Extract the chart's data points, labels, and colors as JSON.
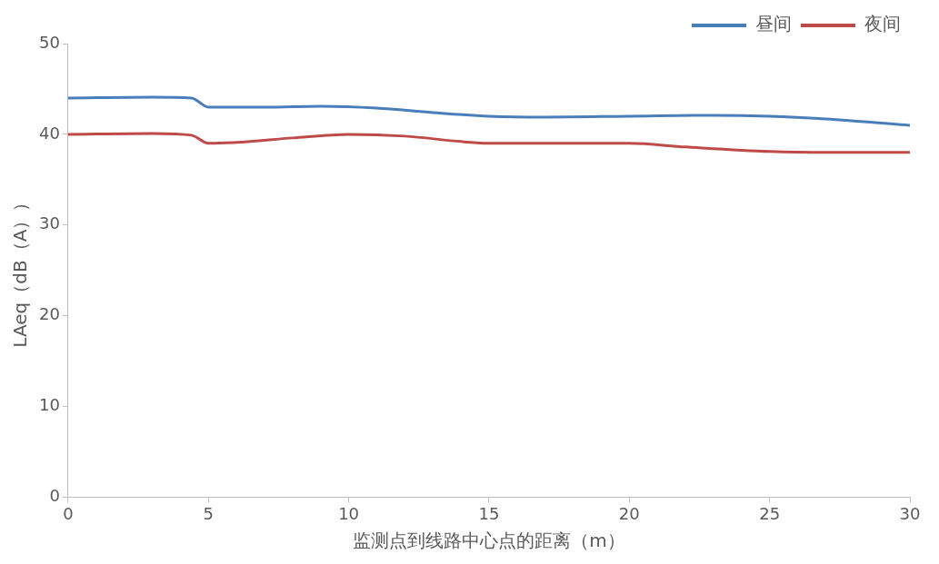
{
  "chart_data": {
    "type": "line",
    "xlabel": "监测点到线路中心点的距离（m）",
    "ylabel": "LAeq（dB（A））",
    "xlim": [
      0,
      30
    ],
    "xticks": [
      0,
      5,
      10,
      15,
      20,
      25,
      30
    ],
    "ylim": [
      0,
      50
    ],
    "yticks": [
      0,
      10,
      20,
      30,
      40,
      50
    ],
    "grid": false,
    "legend": "top right",
    "marker": "none",
    "series": [
      {
        "name": "昼间",
        "color": "#4a7ebb",
        "x": [
          0,
          3,
          4.4,
          5,
          7,
          9,
          11,
          13,
          15,
          17,
          20,
          23,
          25,
          27,
          30
        ],
        "values": [
          44,
          44.1,
          44,
          43,
          43,
          43.1,
          42.9,
          42.4,
          42,
          41.9,
          42,
          42.1,
          42,
          41.7,
          41
        ]
      },
      {
        "name": "夜间",
        "color": "#be4b48",
        "x": [
          0,
          3,
          4.4,
          5,
          6,
          8,
          10,
          12,
          14,
          15,
          18,
          20,
          22,
          25,
          27,
          30
        ],
        "values": [
          40,
          40.1,
          39.9,
          39,
          39.1,
          39.6,
          40,
          39.8,
          39.2,
          39,
          39,
          39,
          38.6,
          38.1,
          38,
          38
        ]
      }
    ]
  }
}
